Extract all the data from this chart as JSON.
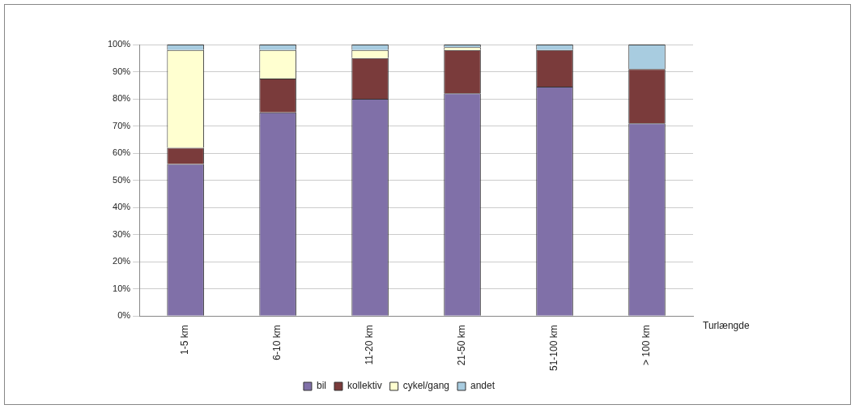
{
  "chart_data": {
    "type": "bar",
    "stacked": true,
    "xlabel": "Turlængde",
    "categories": [
      "1-5 km",
      "6-10 km",
      "11-20 km",
      "21-50 km",
      "51-100 km",
      "> 100 km"
    ],
    "series": [
      {
        "name": "bil",
        "color": "#8070a8",
        "values": [
          56,
          75,
          80,
          82,
          84.5,
          71
        ]
      },
      {
        "name": "kollektiv",
        "color": "#7a3b3b",
        "values": [
          6,
          12.5,
          15,
          16,
          13.5,
          20
        ]
      },
      {
        "name": "cykel/gang",
        "color": "#ffffd0",
        "values": [
          36,
          10.5,
          3,
          1,
          0,
          0
        ]
      },
      {
        "name": "andet",
        "color": "#a8cce0",
        "values": [
          2,
          2,
          2,
          1,
          2,
          9
        ]
      }
    ],
    "ylim": [
      0,
      100
    ],
    "yticks": [
      {
        "value": 0,
        "label": "0%"
      },
      {
        "value": 10,
        "label": "10%"
      },
      {
        "value": 20,
        "label": "20%"
      },
      {
        "value": 30,
        "label": "30%"
      },
      {
        "value": 40,
        "label": "40%"
      },
      {
        "value": 50,
        "label": "50%"
      },
      {
        "value": 60,
        "label": "60%"
      },
      {
        "value": 70,
        "label": "70%"
      },
      {
        "value": 80,
        "label": "80%"
      },
      {
        "value": 90,
        "label": "90%"
      },
      {
        "value": 100,
        "label": "100%"
      }
    ],
    "grid": "y",
    "legend": "bottom"
  }
}
